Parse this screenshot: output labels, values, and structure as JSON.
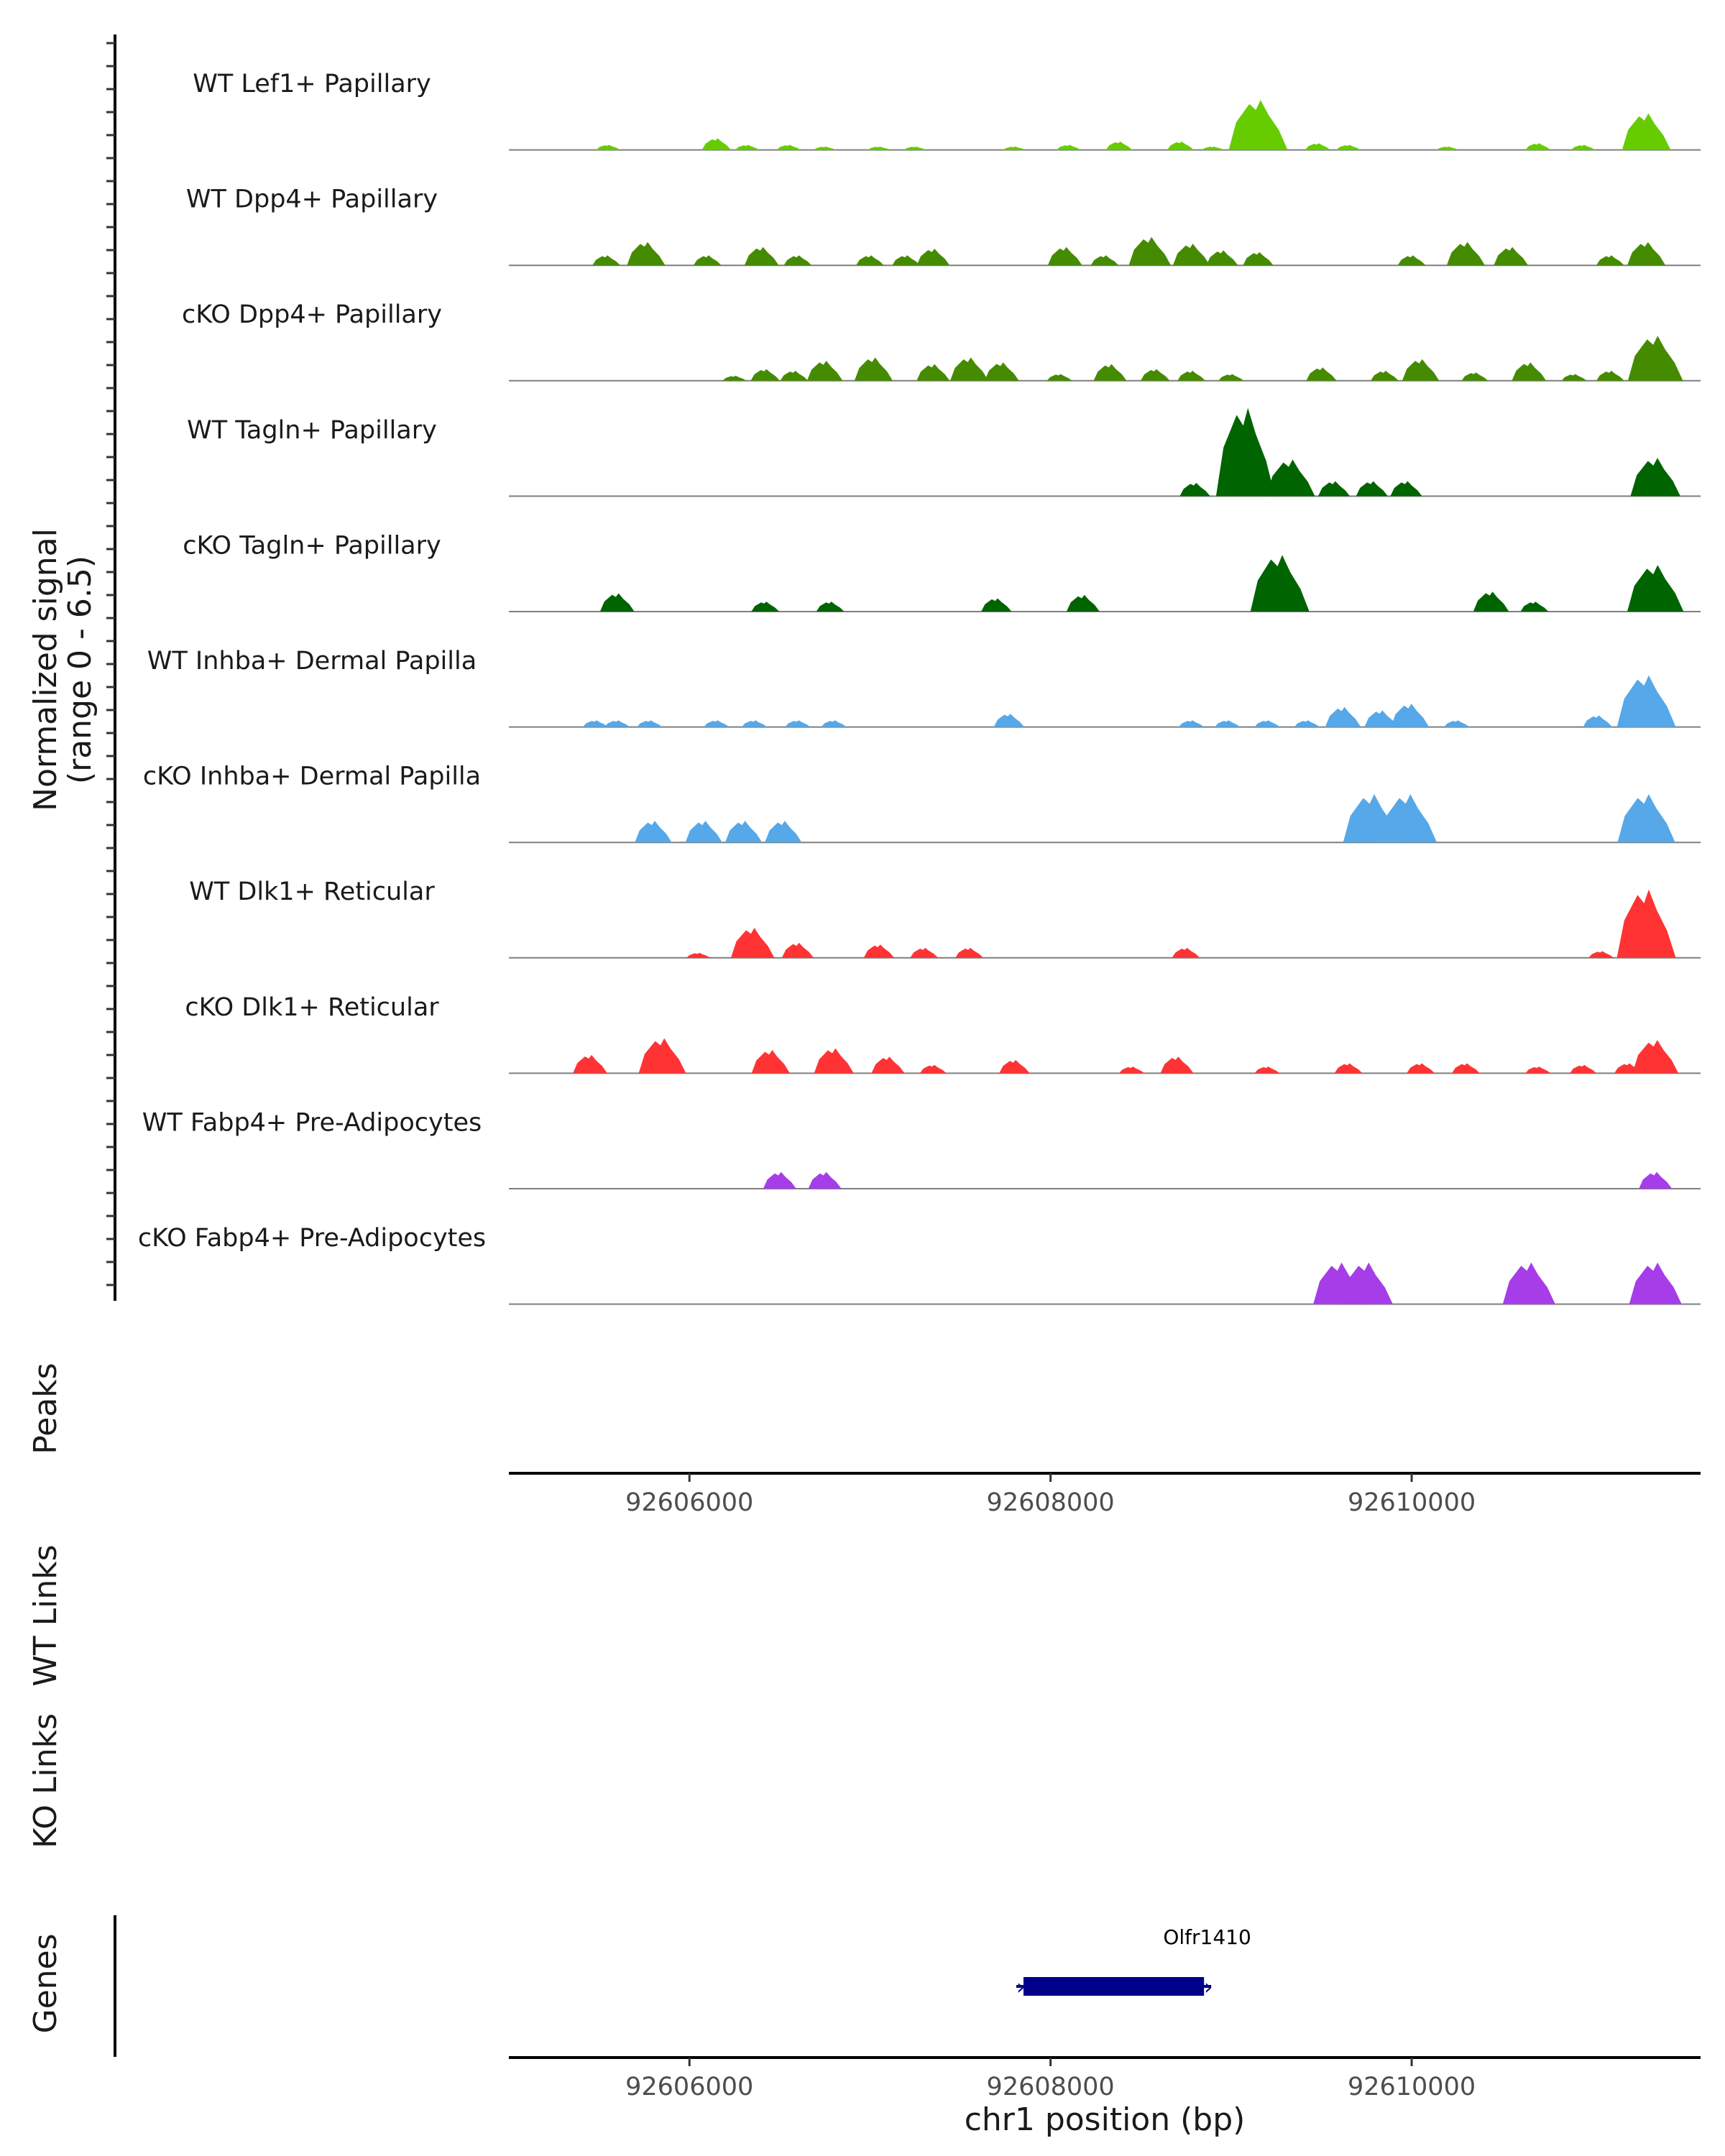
{
  "chart_data": {
    "type": "area",
    "title": "",
    "chromosome": "chr1",
    "xlim": [
      92605000,
      92611600
    ],
    "signal_axis": {
      "title": "Normalized signal",
      "subtitle": "(range 0 - 6.5)",
      "ylim": [
        0,
        6.5
      ]
    },
    "tracks": [
      {
        "name": "WT Lef1+ Papillary",
        "color": "#66CC00",
        "peaks": [
          [
            92605550,
            0.3
          ],
          [
            92606150,
            0.7
          ],
          [
            92606320,
            0.3
          ],
          [
            92606550,
            0.3
          ],
          [
            92606750,
            0.2
          ],
          [
            92607050,
            0.2
          ],
          [
            92607250,
            0.2
          ],
          [
            92607800,
            0.2
          ],
          [
            92608100,
            0.3
          ],
          [
            92608380,
            0.5
          ],
          [
            92608720,
            0.5
          ],
          [
            92608900,
            0.2
          ],
          [
            92609150,
            3.0
          ],
          [
            92609480,
            0.4
          ],
          [
            92609650,
            0.3
          ],
          [
            92610200,
            0.2
          ],
          [
            92610700,
            0.4
          ],
          [
            92610950,
            0.3
          ],
          [
            92611300,
            2.2
          ]
        ]
      },
      {
        "name": "WT Dpp4+ Papillary",
        "color": "#458B00",
        "peaks": [
          [
            92605540,
            0.6
          ],
          [
            92605760,
            1.4
          ],
          [
            92606100,
            0.6
          ],
          [
            92606400,
            1.1
          ],
          [
            92606600,
            0.6
          ],
          [
            92607000,
            0.6
          ],
          [
            92607200,
            0.6
          ],
          [
            92607350,
            1.0
          ],
          [
            92608080,
            1.1
          ],
          [
            92608300,
            0.6
          ],
          [
            92608550,
            1.7
          ],
          [
            92608780,
            1.3
          ],
          [
            92608950,
            0.9
          ],
          [
            92609150,
            0.8
          ],
          [
            92610000,
            0.6
          ],
          [
            92610300,
            1.4
          ],
          [
            92610550,
            1.1
          ],
          [
            92611100,
            0.6
          ],
          [
            92611300,
            1.4
          ]
        ]
      },
      {
        "name": "cKO Dpp4+ Papillary",
        "color": "#458B00",
        "peaks": [
          [
            92606250,
            0.3
          ],
          [
            92606420,
            0.7
          ],
          [
            92606580,
            0.6
          ],
          [
            92606750,
            1.2
          ],
          [
            92607020,
            1.4
          ],
          [
            92607350,
            1.0
          ],
          [
            92607550,
            1.4
          ],
          [
            92607730,
            1.1
          ],
          [
            92608050,
            0.4
          ],
          [
            92608330,
            1.0
          ],
          [
            92608580,
            0.7
          ],
          [
            92608780,
            0.6
          ],
          [
            92609000,
            0.4
          ],
          [
            92609500,
            0.8
          ],
          [
            92609850,
            0.6
          ],
          [
            92610050,
            1.3
          ],
          [
            92610350,
            0.5
          ],
          [
            92610650,
            1.1
          ],
          [
            92610900,
            0.4
          ],
          [
            92611100,
            0.6
          ],
          [
            92611350,
            2.7
          ]
        ]
      },
      {
        "name": "WT Tagln+ Papillary",
        "color": "#006400",
        "peaks": [
          [
            92608800,
            0.8
          ],
          [
            92609080,
            5.3
          ],
          [
            92609330,
            2.2
          ],
          [
            92609570,
            0.9
          ],
          [
            92609780,
            0.9
          ],
          [
            92609970,
            0.9
          ],
          [
            92611350,
            2.3
          ]
        ]
      },
      {
        "name": "cKO Tagln+ Papillary",
        "color": "#006400",
        "peaks": [
          [
            92605600,
            1.1
          ],
          [
            92606420,
            0.6
          ],
          [
            92606780,
            0.6
          ],
          [
            92607700,
            0.8
          ],
          [
            92608180,
            1.0
          ],
          [
            92609270,
            3.4
          ],
          [
            92610440,
            1.2
          ],
          [
            92610680,
            0.6
          ],
          [
            92611350,
            2.8
          ]
        ]
      },
      {
        "name": "WT Inhba+ Dermal Papilla",
        "color": "#56A8E8",
        "peaks": [
          [
            92605480,
            0.4
          ],
          [
            92605600,
            0.4
          ],
          [
            92605780,
            0.4
          ],
          [
            92606150,
            0.4
          ],
          [
            92606360,
            0.4
          ],
          [
            92606600,
            0.4
          ],
          [
            92606800,
            0.4
          ],
          [
            92607770,
            0.8
          ],
          [
            92608780,
            0.4
          ],
          [
            92608980,
            0.4
          ],
          [
            92609200,
            0.4
          ],
          [
            92609420,
            0.4
          ],
          [
            92609620,
            1.2
          ],
          [
            92609830,
            1.0
          ],
          [
            92609990,
            1.4
          ],
          [
            92610250,
            0.4
          ],
          [
            92611030,
            0.7
          ],
          [
            92611300,
            3.1
          ]
        ]
      },
      {
        "name": "cKO Inhba+ Dermal Papilla",
        "color": "#56A8E8",
        "peaks": [
          [
            92605800,
            1.3
          ],
          [
            92606080,
            1.3
          ],
          [
            92606300,
            1.3
          ],
          [
            92606520,
            1.3
          ],
          [
            92609780,
            2.9
          ],
          [
            92609980,
            2.9
          ],
          [
            92611300,
            2.9
          ]
        ]
      },
      {
        "name": "WT Dlk1+ Reticular",
        "color": "#FF3333",
        "peaks": [
          [
            92606050,
            0.3
          ],
          [
            92606350,
            1.8
          ],
          [
            92606600,
            0.9
          ],
          [
            92607050,
            0.8
          ],
          [
            92607300,
            0.6
          ],
          [
            92607550,
            0.6
          ],
          [
            92608750,
            0.6
          ],
          [
            92611050,
            0.4
          ],
          [
            92611300,
            4.1
          ]
        ]
      },
      {
        "name": "cKO Dlk1+ Reticular",
        "color": "#FF3333",
        "peaks": [
          [
            92605450,
            1.1
          ],
          [
            92605850,
            2.1
          ],
          [
            92606450,
            1.4
          ],
          [
            92606800,
            1.5
          ],
          [
            92607100,
            1.0
          ],
          [
            92607350,
            0.5
          ],
          [
            92607800,
            0.8
          ],
          [
            92608450,
            0.4
          ],
          [
            92608700,
            1.0
          ],
          [
            92609200,
            0.4
          ],
          [
            92609650,
            0.6
          ],
          [
            92610050,
            0.6
          ],
          [
            92610300,
            0.6
          ],
          [
            92610700,
            0.4
          ],
          [
            92610950,
            0.5
          ],
          [
            92611200,
            0.6
          ],
          [
            92611350,
            2.0
          ]
        ]
      },
      {
        "name": "WT Fabp4+ Pre-Adipocytes",
        "color": "#A63DE8",
        "peaks": [
          [
            92606500,
            1.0
          ],
          [
            92606750,
            1.0
          ],
          [
            92611350,
            1.0
          ]
        ]
      },
      {
        "name": "cKO Fabp4+ Pre-Adipocytes",
        "color": "#A63DE8",
        "peaks": [
          [
            92609600,
            2.5
          ],
          [
            92609750,
            2.5
          ],
          [
            92610650,
            2.5
          ],
          [
            92611350,
            2.5
          ]
        ]
      }
    ],
    "extra_tracks": {
      "peaks": "Peaks",
      "wt_links": "WT Links",
      "ko_links": "KO Links",
      "genes": "Genes"
    },
    "xticks": [
      92606000,
      92608000,
      92610000
    ],
    "xtick_labels": [
      "92606000",
      "92608000",
      "92610000"
    ],
    "xlabel": "chr1 position (bp)",
    "gene": {
      "name": "Olfr1410",
      "start": 92607850,
      "end": 92608850,
      "strand": "+",
      "color": "#00008B"
    }
  }
}
